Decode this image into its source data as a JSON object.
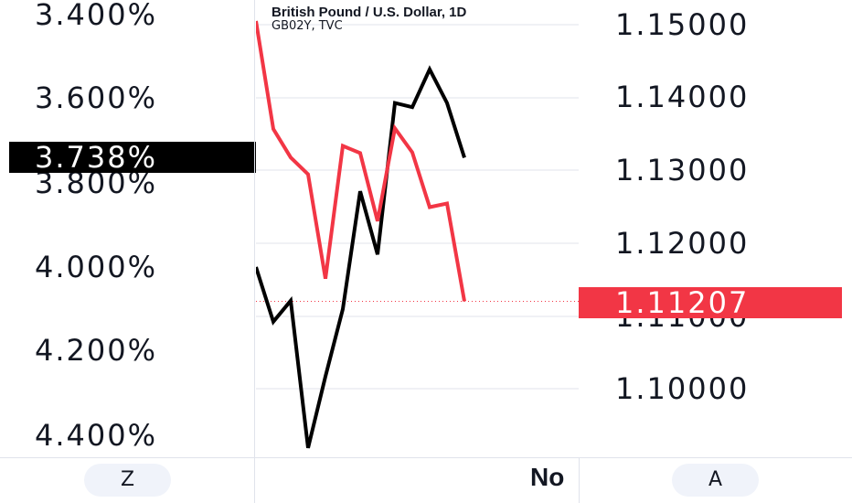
{
  "legend": {
    "title": "British Pound / U.S. Dollar, 1D",
    "subtitle": "GB02Y, TVC"
  },
  "left_scale": {
    "ticks": [
      "3.400%",
      "3.600%",
      "3.800%",
      "4.000%",
      "4.200%",
      "4.400%"
    ],
    "last_value": "3.738%",
    "last_color": "#000000"
  },
  "right_scale": {
    "ticks": [
      "1.15000",
      "1.14000",
      "1.13000",
      "1.12000",
      "1.11000",
      "1.10000"
    ],
    "last_value": "1.11207",
    "last_color": "#f23645"
  },
  "time_axis": {
    "visible_label": "No"
  },
  "buttons": {
    "left_scale_mode": "Z",
    "right_scale_mode": "A"
  },
  "colors": {
    "gb02y": "#000000",
    "gbpusd": "#f23645",
    "grid": "#e0e3eb"
  },
  "chart_data": {
    "type": "line",
    "title": "British Pound / U.S. Dollar, 1D",
    "left_axis": {
      "ticks": [
        3.4,
        3.6,
        3.8,
        4.0,
        4.2,
        4.4
      ],
      "inverted": true,
      "unit": "%"
    },
    "right_axis": {
      "ticks": [
        1.15,
        1.14,
        1.13,
        1.12,
        1.11,
        1.1
      ]
    },
    "series": [
      {
        "name": "GB02Y, TVC",
        "axis": "left",
        "color": "#000000",
        "values": [
          4.0,
          4.13,
          4.08,
          4.43,
          4.26,
          4.1,
          3.82,
          3.97,
          3.61,
          3.62,
          3.53,
          3.61,
          3.74
        ]
      },
      {
        "name": "British Pound / U.S. Dollar, 1D",
        "axis": "right",
        "color": "#f23645",
        "values": [
          1.1505,
          1.1357,
          1.1318,
          1.1295,
          1.1152,
          1.1334,
          1.1324,
          1.1231,
          1.1358,
          1.1325,
          1.125,
          1.1255,
          1.1121
        ]
      }
    ],
    "last_values": {
      "GB02Y": "3.738%",
      "GBPUSD": "1.11207"
    }
  }
}
